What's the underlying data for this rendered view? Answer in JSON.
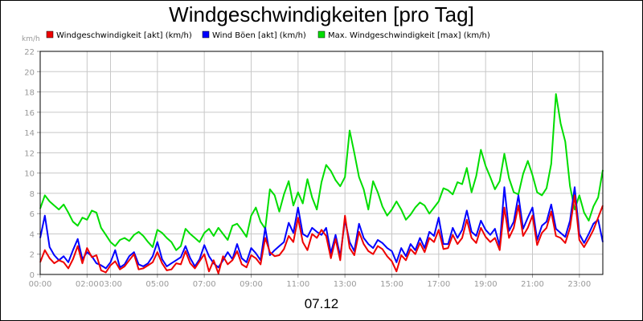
{
  "chart_data": {
    "type": "line",
    "title": "Windgeschwindigkeiten [pro Tag]",
    "ylabel": "km/h",
    "xlabel": "07.12",
    "ylim": [
      0,
      22
    ],
    "yticks": [
      0,
      2,
      4,
      6,
      8,
      10,
      12,
      14,
      16,
      18,
      20,
      22
    ],
    "xlim": [
      0,
      24
    ],
    "xticks": [
      {
        "h": 0,
        "label": "00:00"
      },
      {
        "h": 2,
        "label": "02:00"
      },
      {
        "h": 3,
        "label": "03:00"
      },
      {
        "h": 5,
        "label": "05:00"
      },
      {
        "h": 7,
        "label": "07:00"
      },
      {
        "h": 9,
        "label": "09:00"
      },
      {
        "h": 11,
        "label": "11:00"
      },
      {
        "h": 13,
        "label": "13:00"
      },
      {
        "h": 15,
        "label": "15:00"
      },
      {
        "h": 17,
        "label": "17:00"
      },
      {
        "h": 19,
        "label": "19:00"
      },
      {
        "h": 21,
        "label": "21:00"
      },
      {
        "h": 23,
        "label": "23:00"
      }
    ],
    "grid": true,
    "legend": "top",
    "series": [
      {
        "name": "Max. Windgeschwindigkeit [max] (km/h)",
        "color": "#00dd00",
        "x": [
          0,
          0.2,
          0.4,
          0.6,
          0.8,
          1,
          1.2,
          1.4,
          1.6,
          1.8,
          2,
          2.2,
          2.4,
          2.6,
          2.8,
          3,
          3.2,
          3.4,
          3.6,
          3.8,
          4,
          4.2,
          4.4,
          4.6,
          4.8,
          5,
          5.2,
          5.4,
          5.6,
          5.8,
          6,
          6.2,
          6.4,
          6.6,
          6.8,
          7,
          7.2,
          7.4,
          7.6,
          7.8,
          8,
          8.2,
          8.4,
          8.6,
          8.8,
          9,
          9.2,
          9.4,
          9.6,
          9.8,
          10,
          10.2,
          10.4,
          10.6,
          10.8,
          11,
          11.2,
          11.4,
          11.6,
          11.8,
          12,
          12.2,
          12.4,
          12.6,
          12.8,
          13,
          13.2,
          13.4,
          13.6,
          13.8,
          14,
          14.2,
          14.4,
          14.6,
          14.8,
          15,
          15.2,
          15.4,
          15.6,
          15.8,
          16,
          16.2,
          16.4,
          16.6,
          16.8,
          17,
          17.2,
          17.4,
          17.6,
          17.8,
          18,
          18.2,
          18.4,
          18.6,
          18.8,
          19,
          19.2,
          19.4,
          19.6,
          19.8,
          20,
          20.2,
          20.4,
          20.6,
          20.8,
          21,
          21.2,
          21.4,
          21.6,
          21.8,
          22,
          22.2,
          22.4,
          22.6,
          22.8,
          23,
          23.2,
          23.4,
          23.6,
          23.8,
          24
        ],
        "values": [
          6.5,
          7.8,
          7.2,
          6.8,
          6.4,
          6.9,
          6.1,
          5.2,
          4.8,
          5.6,
          5.4,
          6.3,
          6.1,
          4.6,
          3.9,
          3.2,
          2.8,
          3.4,
          3.6,
          3.3,
          3.9,
          4.2,
          3.8,
          3.2,
          2.7,
          4.4,
          4.1,
          3.6,
          3.2,
          2.4,
          2.8,
          4.5,
          4.0,
          3.6,
          3.2,
          4.1,
          4.5,
          3.8,
          4.6,
          4.0,
          3.4,
          4.8,
          5.0,
          4.4,
          3.7,
          5.8,
          6.6,
          5.2,
          4.5,
          8.4,
          7.8,
          6.2,
          7.9,
          9.2,
          6.8,
          8.1,
          7.0,
          9.4,
          7.6,
          6.4,
          9.1,
          10.8,
          10.2,
          9.3,
          8.7,
          9.6,
          14.2,
          12.0,
          9.6,
          8.4,
          6.4,
          9.2,
          8.1,
          6.7,
          5.8,
          6.4,
          7.2,
          6.4,
          5.4,
          5.9,
          6.6,
          7.1,
          6.8,
          6.0,
          6.6,
          7.2,
          8.5,
          8.3,
          7.9,
          9.1,
          8.9,
          10.5,
          8.1,
          9.7,
          12.3,
          10.7,
          9.6,
          8.4,
          9.2,
          11.9,
          9.5,
          8.1,
          7.9,
          9.9,
          11.2,
          9.8,
          8.1,
          7.8,
          8.5,
          10.9,
          17.8,
          14.9,
          13.1,
          8.7,
          6.4,
          7.8,
          6.1,
          5.3,
          6.7,
          7.6,
          10.3
        ]
      },
      {
        "name": "Wind Böen [akt] (km/h)",
        "color": "#0000ff",
        "x": [
          0,
          0.2,
          0.4,
          0.6,
          0.8,
          1,
          1.2,
          1.4,
          1.6,
          1.8,
          2,
          2.2,
          2.4,
          2.6,
          2.8,
          3,
          3.2,
          3.4,
          3.6,
          3.8,
          4,
          4.2,
          4.4,
          4.6,
          4.8,
          5,
          5.2,
          5.4,
          5.6,
          5.8,
          6,
          6.2,
          6.4,
          6.6,
          6.8,
          7,
          7.2,
          7.4,
          7.6,
          7.8,
          8,
          8.2,
          8.4,
          8.6,
          8.8,
          9,
          9.2,
          9.4,
          9.6,
          9.8,
          10,
          10.2,
          10.4,
          10.6,
          10.8,
          11,
          11.2,
          11.4,
          11.6,
          11.8,
          12,
          12.2,
          12.4,
          12.6,
          12.8,
          13,
          13.2,
          13.4,
          13.6,
          13.8,
          14,
          14.2,
          14.4,
          14.6,
          14.8,
          15,
          15.2,
          15.4,
          15.6,
          15.8,
          16,
          16.2,
          16.4,
          16.6,
          16.8,
          17,
          17.2,
          17.4,
          17.6,
          17.8,
          18,
          18.2,
          18.4,
          18.6,
          18.8,
          19,
          19.2,
          19.4,
          19.6,
          19.8,
          20,
          20.2,
          20.4,
          20.6,
          20.8,
          21,
          21.2,
          21.4,
          21.6,
          21.8,
          22,
          22.2,
          22.4,
          22.6,
          22.8,
          23,
          23.2,
          23.4,
          23.6,
          23.8,
          24
        ],
        "values": [
          3.6,
          5.8,
          2.7,
          1.9,
          1.4,
          1.8,
          1.2,
          2.4,
          3.5,
          1.5,
          2.2,
          1.8,
          1.1,
          0.9,
          0.6,
          1.2,
          2.4,
          0.7,
          1.0,
          1.8,
          2.2,
          1.0,
          0.8,
          1.1,
          1.8,
          3.2,
          1.5,
          0.8,
          1.1,
          1.4,
          1.7,
          2.8,
          1.6,
          0.8,
          1.5,
          2.9,
          1.8,
          1.1,
          0.7,
          1.4,
          2.2,
          1.5,
          3.0,
          1.6,
          1.2,
          2.6,
          2.1,
          1.4,
          4.6,
          1.9,
          2.4,
          2.8,
          3.2,
          5.1,
          4.1,
          6.6,
          4.0,
          3.7,
          4.6,
          4.2,
          3.9,
          4.6,
          2.1,
          3.9,
          1.8,
          5.4,
          3.2,
          2.3,
          5.0,
          3.6,
          3.0,
          2.6,
          3.4,
          3.1,
          2.6,
          2.3,
          1.2,
          2.6,
          1.8,
          3.0,
          2.4,
          3.6,
          2.6,
          4.2,
          3.8,
          5.6,
          3.0,
          3.0,
          4.6,
          3.6,
          4.4,
          6.3,
          4.2,
          3.8,
          5.3,
          4.4,
          3.9,
          4.5,
          2.8,
          8.6,
          4.3,
          5.2,
          7.8,
          4.5,
          5.6,
          6.6,
          3.4,
          4.8,
          5.2,
          6.9,
          4.5,
          4.1,
          3.7,
          5.3,
          8.6,
          4.0,
          3.1,
          4.0,
          5.0,
          5.4,
          3.2
        ]
      },
      {
        "name": "Windgeschwindigkeit [akt] (km/h)",
        "color": "#ee0000",
        "x": [
          0,
          0.2,
          0.4,
          0.6,
          0.8,
          1,
          1.2,
          1.4,
          1.6,
          1.8,
          2,
          2.2,
          2.4,
          2.6,
          2.8,
          3,
          3.2,
          3.4,
          3.6,
          3.8,
          4,
          4.2,
          4.4,
          4.6,
          4.8,
          5,
          5.2,
          5.4,
          5.6,
          5.8,
          6,
          6.2,
          6.4,
          6.6,
          6.8,
          7,
          7.2,
          7.4,
          7.6,
          7.8,
          8,
          8.2,
          8.4,
          8.6,
          8.8,
          9,
          9.2,
          9.4,
          9.6,
          9.8,
          10,
          10.2,
          10.4,
          10.6,
          10.8,
          11,
          11.2,
          11.4,
          11.6,
          11.8,
          12,
          12.2,
          12.4,
          12.6,
          12.8,
          13,
          13.2,
          13.4,
          13.6,
          13.8,
          14,
          14.2,
          14.4,
          14.6,
          14.8,
          15,
          15.2,
          15.4,
          15.6,
          15.8,
          16,
          16.2,
          16.4,
          16.6,
          16.8,
          17,
          17.2,
          17.4,
          17.6,
          17.8,
          18,
          18.2,
          18.4,
          18.6,
          18.8,
          19,
          19.2,
          19.4,
          19.6,
          19.8,
          20,
          20.2,
          20.4,
          20.6,
          20.8,
          21,
          21.2,
          21.4,
          21.6,
          21.8,
          22,
          22.2,
          22.4,
          22.6,
          22.8,
          23,
          23.2,
          23.4,
          23.6,
          23.8,
          24
        ],
        "values": [
          1.2,
          2.4,
          1.6,
          1.1,
          1.4,
          1.2,
          0.6,
          1.5,
          2.8,
          1.1,
          2.6,
          1.7,
          1.9,
          0.4,
          0.2,
          0.9,
          1.3,
          0.5,
          0.8,
          1.4,
          2.0,
          0.5,
          0.6,
          0.9,
          1.2,
          2.2,
          1.1,
          0.4,
          0.5,
          1.1,
          1.0,
          2.3,
          1.1,
          0.6,
          1.3,
          2.0,
          0.3,
          1.4,
          0.1,
          1.8,
          1.0,
          1.4,
          2.3,
          1.0,
          0.7,
          1.9,
          1.6,
          1.0,
          3.6,
          2.2,
          1.8,
          1.9,
          2.5,
          3.8,
          3.2,
          5.6,
          3.2,
          2.4,
          4.0,
          3.6,
          4.4,
          3.8,
          1.6,
          3.5,
          1.4,
          5.8,
          2.6,
          1.9,
          4.2,
          3.0,
          2.3,
          2.0,
          2.8,
          2.5,
          1.8,
          1.3,
          0.3,
          1.9,
          1.4,
          2.5,
          2.0,
          3.1,
          2.2,
          3.6,
          3.2,
          4.4,
          2.5,
          2.6,
          3.9,
          3.0,
          3.6,
          5.4,
          3.6,
          3.1,
          4.6,
          3.7,
          3.2,
          3.6,
          2.4,
          6.6,
          3.6,
          4.6,
          6.8,
          3.8,
          4.6,
          5.8,
          2.9,
          4.1,
          4.6,
          6.2,
          3.8,
          3.6,
          3.1,
          4.6,
          7.8,
          3.4,
          2.7,
          3.5,
          4.4,
          5.6,
          6.8
        ]
      }
    ]
  }
}
